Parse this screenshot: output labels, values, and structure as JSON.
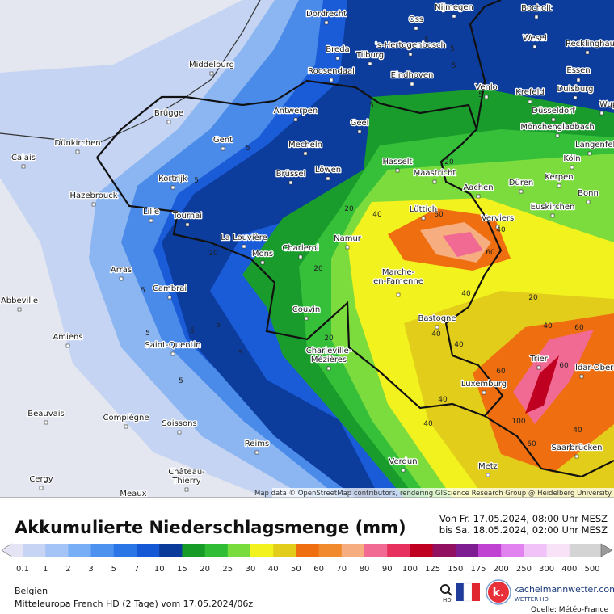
{
  "map": {
    "attribution": "Map data © OpenStreetMap contributors, rendering GIScience Research Group @ Heidelberg University",
    "cities": [
      "Dordrecht",
      "Oss",
      "Nijmegen",
      "Bocholt",
      "Wesel",
      "Recklinghausen",
      "'s-Hertogenbosch",
      "Breda",
      "Tilburg",
      "Middelburg",
      "Roosendaal",
      "Eindhoven",
      "Venlo",
      "Krefeld",
      "Essen",
      "Duisburg",
      "Antwerpen",
      "Brügge",
      "Düsseldorf",
      "Geel",
      "Mönchengladbach",
      "Wuppertal",
      "Gent",
      "Mecheln",
      "Dünkirchen",
      "Langenfeld",
      "Calais",
      "Hasselt",
      "Köln",
      "Maastricht",
      "Brüssel",
      "Löwen",
      "Kortrijk",
      "Kerpen",
      "Aachen",
      "Düren",
      "Hazebrouck",
      "Bonn",
      "Euskirchen",
      "Lille",
      "Tournai",
      "Lüttich",
      "Verviers",
      "La Louvière",
      "Mons",
      "Charleroi",
      "Namur",
      "Arras",
      [
        "Marche-",
        "en-Famenne"
      ],
      "Cambrai",
      "Abbeville",
      "Couvin",
      "Bastogne",
      "Amiens",
      "Saint-Quentin",
      [
        "Charleville-",
        "Mézières"
      ],
      "Trier",
      "Idar-Oberstein",
      "Luxemburg",
      "Beauvais",
      "Compiègne",
      "Soissons",
      "Saarbrücken",
      "Reims",
      "Verdun",
      "Metz",
      [
        "Château-",
        "Thierry"
      ],
      "Cergy",
      "Meaux"
    ],
    "contour_labels": [
      5,
      5,
      5,
      5,
      5,
      5,
      5,
      5,
      5,
      5,
      5,
      5,
      5,
      20,
      20,
      20,
      20,
      20,
      20,
      40,
      40,
      40,
      40,
      40,
      40,
      40,
      40,
      40,
      60,
      60,
      60,
      60,
      60,
      60,
      100
    ]
  },
  "legend": {
    "title": "Akkumulierte Niederschlagsmenge (mm)",
    "period_from": "Von Fr. 17.05.2024, 08:00 Uhr MESZ",
    "period_to": "bis Sa. 18.05.2024, 02:00 Uhr MESZ",
    "labels": [
      0.1,
      1,
      2,
      3,
      5,
      7,
      10,
      15,
      20,
      25,
      30,
      40,
      50,
      60,
      70,
      80,
      90,
      100,
      125,
      150,
      175,
      200,
      250,
      300,
      400,
      500
    ],
    "colors": [
      "#e4e4f4",
      "#c8d4f4",
      "#a4c4f8",
      "#78aef6",
      "#4c92ee",
      "#2a76e6",
      "#1458d6",
      "#0a3a9a",
      "#169a28",
      "#30bc34",
      "#78dc3c",
      "#f2f21e",
      "#e2ce1a",
      "#ee6e10",
      "#f08a2c",
      "#f6ae80",
      "#f06a94",
      "#e8305e",
      "#c00020",
      "#921060",
      "#7e1c92",
      "#c042d2",
      "#e282f0",
      "#f0c2f8",
      "#f8e2f8",
      "#d4d4d4",
      "#9a9a9a"
    ]
  },
  "footer": {
    "region": "Belgien",
    "model": "Mitteleuropa French HD (2 Tage) vom 17.05.2024/06z",
    "hd_icon": "HD",
    "brand": "kachelmannwetter.com",
    "brand_sub": "WETTER HD",
    "source": "Quelle: Météo-France"
  }
}
